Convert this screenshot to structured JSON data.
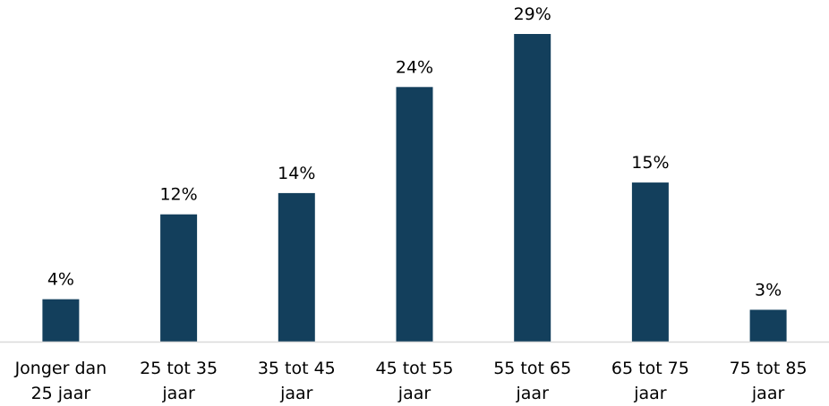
{
  "chart_data": {
    "type": "bar",
    "categories": [
      [
        "Jonger dan",
        "25 jaar"
      ],
      [
        "25 tot 35",
        "jaar"
      ],
      [
        "35 tot 45",
        "jaar"
      ],
      [
        "45 tot 55",
        "jaar"
      ],
      [
        "55 tot 65",
        "jaar"
      ],
      [
        "65 tot 75",
        "jaar"
      ],
      [
        "75 tot 85",
        "jaar"
      ]
    ],
    "values": [
      4,
      12,
      14,
      24,
      29,
      15,
      3
    ],
    "value_labels": [
      "4%",
      "12%",
      "14%",
      "24%",
      "29%",
      "15%",
      "3%"
    ],
    "unit": "%",
    "title": "",
    "xlabel": "",
    "ylabel": "",
    "ylim": [
      0,
      29
    ],
    "grid": false,
    "legend": "none",
    "colors": {
      "bar": "#133f5c",
      "axis": "#d9d9d9",
      "text": "#000000"
    }
  }
}
